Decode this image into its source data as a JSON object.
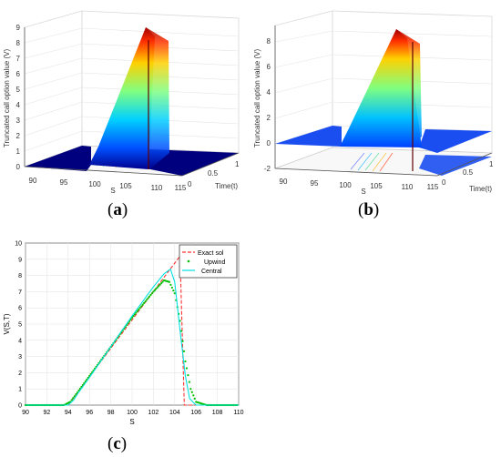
{
  "figure": {
    "captions": {
      "a_prefix": "(",
      "a_letter": "a",
      "a_suffix": ")",
      "b_prefix": "(",
      "b_letter": "b",
      "b_suffix": ")",
      "c_prefix": "(",
      "c_letter": "c",
      "c_suffix": ")"
    }
  },
  "chart_data": [
    {
      "type": "surface3d",
      "panel": "a",
      "zlabel": "Truncated call option value (V)",
      "xlabel": "S",
      "ylabel": "Time(t)",
      "x_ticks": [
        "90",
        "95",
        "100",
        "105",
        "110",
        "115"
      ],
      "y_ticks": [
        "0",
        "0.5",
        "1"
      ],
      "z_ticks": [
        "0",
        "1",
        "2",
        "3",
        "4",
        "5",
        "6",
        "7",
        "8",
        "9"
      ],
      "zlim": [
        0,
        9
      ],
      "colormap": "jet"
    },
    {
      "type": "surface3d",
      "panel": "b",
      "zlabel": "Truncated call option value (V)",
      "xlabel": "S",
      "ylabel": "Time(t)",
      "x_ticks": [
        "90",
        "95",
        "100",
        "105",
        "110",
        "115"
      ],
      "y_ticks": [
        "0",
        "0.5",
        "1"
      ],
      "z_ticks": [
        "-2",
        "0",
        "2",
        "4",
        "6",
        "8"
      ],
      "zlim": [
        -2,
        9
      ],
      "colormap": "jet"
    },
    {
      "type": "line",
      "panel": "c",
      "xlabel": "S",
      "ylabel": "V(S,T)",
      "xlim": [
        90,
        110
      ],
      "ylim": [
        0,
        10
      ],
      "x_ticks": [
        90,
        92,
        94,
        96,
        98,
        100,
        102,
        104,
        106,
        108,
        110
      ],
      "y_ticks": [
        0,
        1,
        2,
        3,
        4,
        5,
        6,
        7,
        8,
        9,
        10
      ],
      "legend_position": "top-right",
      "series": [
        {
          "name": "Exact sol",
          "color": "#ff3333",
          "style": "dashed",
          "x": [
            90,
            94,
            104.5,
            104.9,
            110
          ],
          "y": [
            0,
            0,
            9.2,
            0,
            0
          ]
        },
        {
          "name": "Upwind",
          "color": "#00c000",
          "style": "dots",
          "x": [
            90,
            93.6,
            94.2,
            95,
            96,
            98,
            100,
            102,
            103,
            103.5,
            104,
            104.5,
            105,
            105.5,
            106,
            107,
            110
          ],
          "y": [
            0,
            0,
            0.2,
            0.9,
            1.8,
            3.6,
            5.4,
            7.0,
            7.7,
            7.6,
            6.9,
            5.2,
            2.7,
            1.0,
            0.2,
            0,
            0
          ]
        },
        {
          "name": "Central",
          "color": "#00e0e0",
          "style": "solid",
          "x": [
            90,
            94,
            94.5,
            95,
            96,
            98,
            100,
            102,
            103,
            103.6,
            104,
            104.5,
            105,
            105.4,
            106,
            110
          ],
          "y": [
            0,
            0,
            0.3,
            0.8,
            1.7,
            3.6,
            5.5,
            7.3,
            8.1,
            8.4,
            7.6,
            4.6,
            1.8,
            0.4,
            0,
            0
          ]
        }
      ]
    }
  ]
}
